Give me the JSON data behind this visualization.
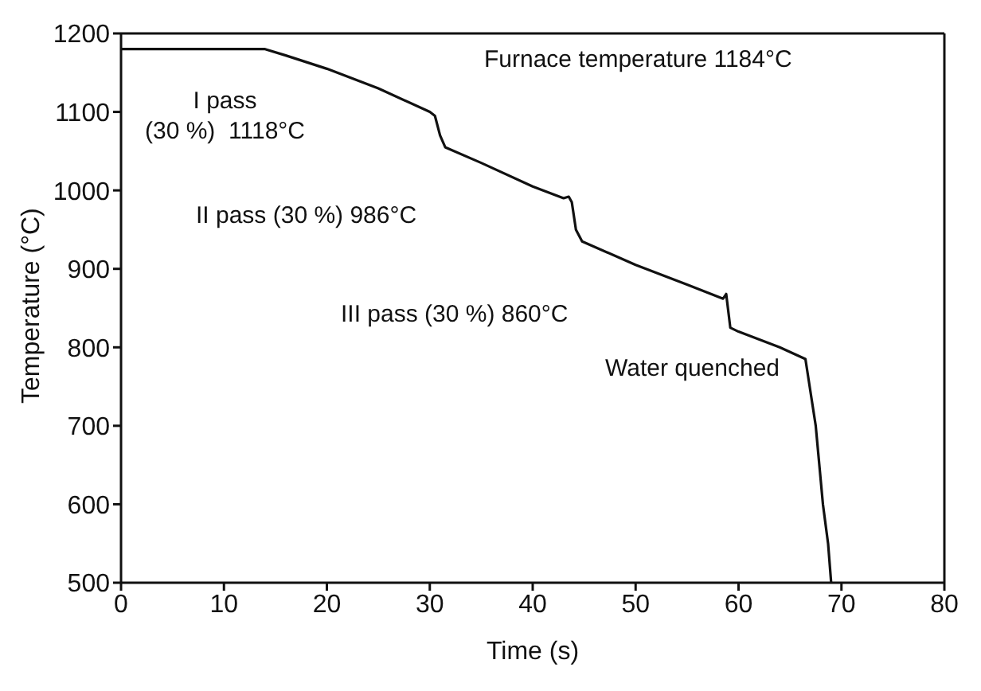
{
  "chart_data": {
    "type": "line",
    "xlabel": "Time (s)",
    "ylabel": "Temperature (°C)",
    "x": [
      0,
      14,
      16,
      20,
      25,
      30,
      30.5,
      31,
      31.5,
      35,
      40,
      43,
      43.5,
      43.8,
      44.2,
      44.8,
      50,
      55,
      58.5,
      58.8,
      59.2,
      60,
      64,
      66.5,
      67.5,
      68.2,
      68.7,
      69
    ],
    "series": [
      {
        "color": "#111111",
        "values": [
          1180,
          1180,
          1172,
          1155,
          1130,
          1100,
          1095,
          1070,
          1055,
          1035,
          1005,
          990,
          992,
          985,
          950,
          935,
          905,
          880,
          862,
          868,
          825,
          820,
          800,
          785,
          700,
          600,
          550,
          500
        ]
      }
    ],
    "xlim": [
      0,
      80
    ],
    "xticks": [
      0,
      10,
      20,
      30,
      40,
      50,
      60,
      70,
      80
    ],
    "ylim": [
      500,
      1200
    ],
    "yticks": [
      500,
      600,
      700,
      800,
      900,
      1000,
      1100,
      1200
    ],
    "grid": false,
    "legend": false,
    "marker": "none",
    "line_style": "solid",
    "annotations": [
      "Furnace temperature 1184°C",
      "I pass\n(30 %)  1118°C",
      "II pass (30 %) 986°C",
      "III pass (30 %) 860°C",
      "Water quenched"
    ]
  }
}
